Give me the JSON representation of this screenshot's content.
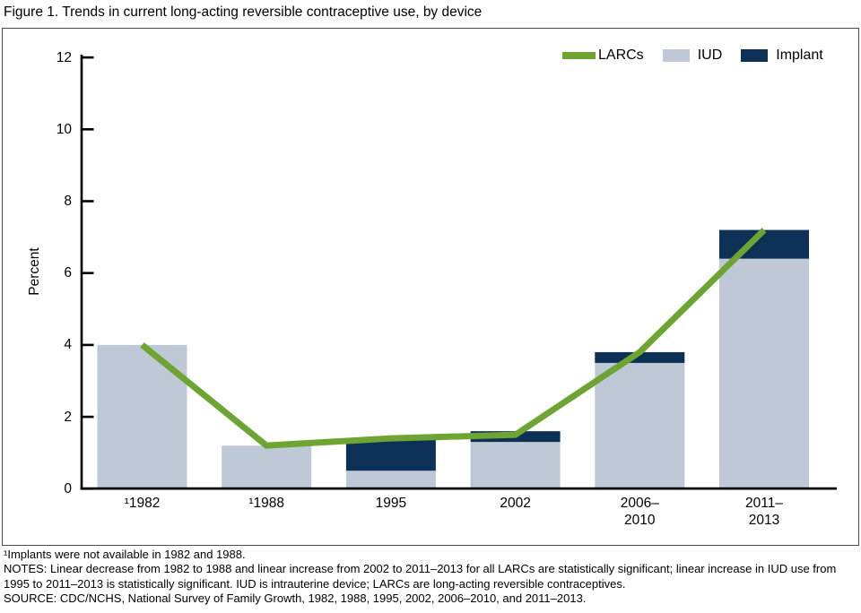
{
  "page_title": "Figure 1. Trends in current long-acting reversible contraceptive use, by device",
  "legend": {
    "items": [
      {
        "label": "LARCs",
        "swatch": "line",
        "color": "#6ea432"
      },
      {
        "label": "IUD",
        "swatch": "box",
        "color": "#bfc8d6"
      },
      {
        "label": "Implant",
        "swatch": "box",
        "color": "#0d3056"
      }
    ]
  },
  "chart_data": {
    "type": "combo-stacked-bar-line",
    "categories": [
      "¹1982",
      "¹1988",
      "1995",
      "2002",
      "2006–\n2010",
      "2011–\n2013"
    ],
    "series": [
      {
        "name": "LARCs",
        "type": "line",
        "color": "#6ea432",
        "values": [
          4.0,
          1.2,
          1.4,
          1.5,
          3.8,
          7.2
        ]
      },
      {
        "name": "IUD",
        "type": "bar",
        "color": "#bfc8d6",
        "values": [
          4.0,
          1.2,
          0.5,
          1.3,
          3.5,
          6.4
        ]
      },
      {
        "name": "Implant",
        "type": "bar",
        "color": "#0d3056",
        "values": [
          null,
          null,
          0.9,
          0.3,
          0.3,
          0.8
        ]
      }
    ],
    "bars_stacked": true,
    "title": "Figure 1. Trends in current long-acting reversible contraceptive use, by device",
    "xlabel": "",
    "ylabel": "Percent",
    "ylim": [
      0,
      12
    ],
    "yticks": [
      0,
      2,
      4,
      6,
      8,
      10,
      12
    ],
    "grid": false,
    "legend_position": "top-right"
  },
  "footnotes": {
    "implant_note": "¹Implants were not available in 1982 and 1988.",
    "notes": "NOTES: Linear decrease from 1982 to 1988 and linear increase from 2002 to 2011–2013 for all LARCs are statistically significant; linear increase in IUD use from 1995 to 2011–2013 is statistically significant. IUD is intrauterine device; LARCs are long-acting reversible contraceptives.",
    "source": "SOURCE: CDC/NCHS, National Survey of Family Growth, 1982, 1988, 1995, 2002, 2006–2010, and 2011–2013."
  }
}
